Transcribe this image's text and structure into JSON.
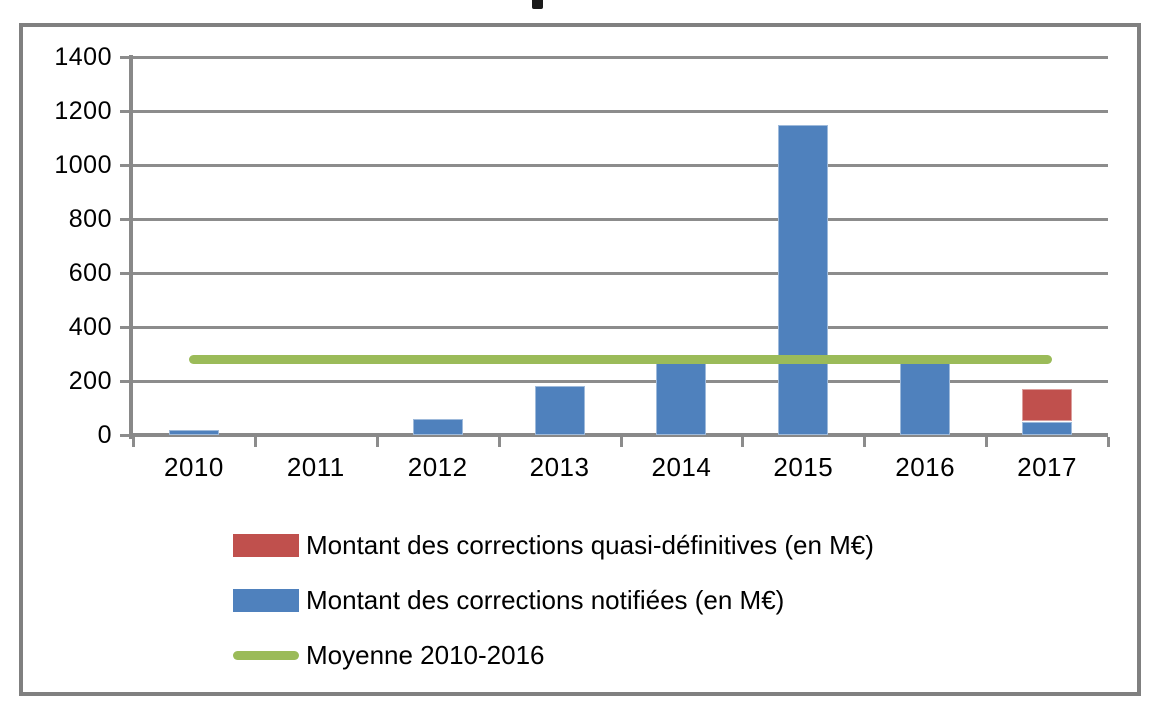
{
  "figure": {
    "background": "#FFFFFF",
    "frame_color": "#808080",
    "axis_color": "#898989",
    "grid_color": "#8C8C8C"
  },
  "chart_data": {
    "type": "bar",
    "stacked": true,
    "title": "",
    "xlabel": "",
    "ylabel": "",
    "categories": [
      "2010",
      "2011",
      "2012",
      "2013",
      "2014",
      "2015",
      "2016",
      "2017"
    ],
    "series": [
      {
        "name": "Montant des corrections quasi-définitives (en M€)",
        "color": "#C0504D",
        "stack_order": 2,
        "values": [
          0,
          0,
          0,
          0,
          0,
          0,
          0,
          120
        ]
      },
      {
        "name": "Montant des corrections notifiées (en M€)",
        "color": "#4F81BD",
        "stack_order": 1,
        "values": [
          20,
          0,
          60,
          180,
          265,
          1150,
          265,
          50
        ]
      }
    ],
    "stacked_totals": [
      20,
      0,
      60,
      180,
      265,
      1150,
      265,
      170
    ],
    "average_line": {
      "name": "Moyenne 2010-2016",
      "color": "#9BBB59",
      "value": 280,
      "span_categories": [
        "2010",
        "2017"
      ]
    },
    "ylim": [
      0,
      1400
    ],
    "yticks": [
      0,
      200,
      400,
      600,
      800,
      1000,
      1200,
      1400
    ],
    "grid": true,
    "legend_position": "bottom-left",
    "legend": [
      {
        "swatch": "rect",
        "color": "#C0504D",
        "label": "Montant des corrections quasi-définitives (en M€)"
      },
      {
        "swatch": "rect",
        "color": "#4F81BD",
        "label": "Montant des corrections notifiées (en M€)"
      },
      {
        "swatch": "line",
        "color": "#9BBB59",
        "label": "Moyenne 2010-2016"
      }
    ]
  }
}
